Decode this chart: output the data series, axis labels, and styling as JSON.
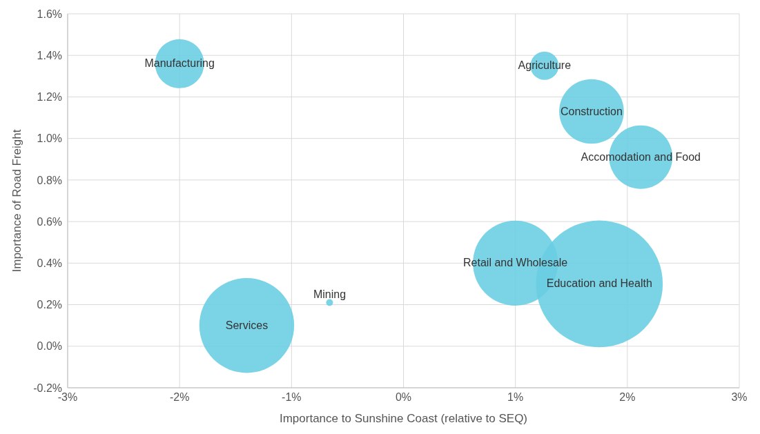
{
  "chart_data": {
    "type": "bubble",
    "xlabel": "Importance to Sunshine Coast (relative to SEQ)",
    "ylabel": "Importance of Road Freight",
    "series": [
      {
        "name": "Manufacturing",
        "color": "#69cde3",
        "x": [
          -2.0
        ],
        "values": [
          1.36
        ],
        "sizes": [
          0.15
        ]
      },
      {
        "name": "Agriculture",
        "color": "#69cde3",
        "x": [
          1.26
        ],
        "values": [
          1.35
        ],
        "sizes": [
          0.05
        ]
      },
      {
        "name": "Construction",
        "color": "#69cde3",
        "x": [
          1.68
        ],
        "values": [
          1.13
        ],
        "sizes": [
          0.26
        ]
      },
      {
        "name": "Accomodation and Food",
        "color": "#69cde3",
        "x": [
          2.12
        ],
        "values": [
          0.91
        ],
        "sizes": [
          0.25
        ]
      },
      {
        "name": "Retail and Wholesale",
        "color": "#69cde3",
        "x": [
          1.0
        ],
        "values": [
          0.4
        ],
        "sizes": [
          0.45
        ]
      },
      {
        "name": "Education and Health",
        "color": "#69cde3",
        "x": [
          1.75
        ],
        "values": [
          0.3
        ],
        "sizes": [
          1
        ]
      },
      {
        "name": "Services",
        "color": "#69cde3",
        "x": [
          -1.4
        ],
        "values": [
          0.1
        ],
        "sizes": [
          0.56
        ]
      },
      {
        "name": "Mining",
        "color": "#69cde3",
        "x": [
          -0.66
        ],
        "values": [
          0.21
        ],
        "sizes": [
          0.003
        ]
      }
    ],
    "xlim": [
      -3,
      3
    ],
    "xticks": [
      {
        "value": -3,
        "label": "-3%"
      },
      {
        "value": -2,
        "label": "-2%"
      },
      {
        "value": -1,
        "label": "-1%"
      },
      {
        "value": 0,
        "label": "0%"
      },
      {
        "value": 1,
        "label": "1%"
      },
      {
        "value": 2,
        "label": "2%"
      },
      {
        "value": 3,
        "label": "3%"
      }
    ],
    "ylim": [
      -0.2,
      1.6
    ],
    "yticks": [
      {
        "value": -0.2,
        "label": "-0.2%"
      },
      {
        "value": 0,
        "label": "0.0%"
      },
      {
        "value": 0.2,
        "label": "0.2%"
      },
      {
        "value": 0.4,
        "label": "0.4%"
      },
      {
        "value": 0.6,
        "label": "0.6%"
      },
      {
        "value": 0.8,
        "label": "0.8%"
      },
      {
        "value": 1,
        "label": "1.0%"
      },
      {
        "value": 1.2,
        "label": "1.2%"
      },
      {
        "value": 1.4,
        "label": "1.4%"
      },
      {
        "value": 1.6,
        "label": "1.6%"
      }
    ],
    "grid": true,
    "legend": false
  }
}
